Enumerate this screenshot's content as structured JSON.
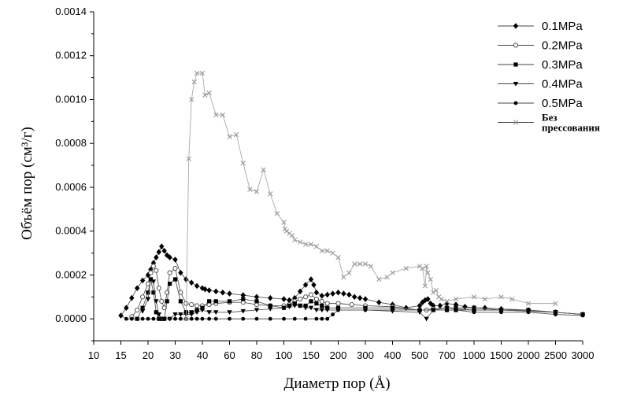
{
  "chart_data": {
    "type": "line",
    "xlabel": "Диаметр пор (Å)",
    "ylabel": "Объём пор (см³/г)",
    "x_ticks": [
      "10",
      "15",
      "20",
      "30",
      "40",
      "60",
      "80",
      "100",
      "150",
      "200",
      "300",
      "400",
      "500",
      "700",
      "1000",
      "1500",
      "2000",
      "2500",
      "3000"
    ],
    "y_ticks": [
      "0.0000",
      "0.0002",
      "0.0004",
      "0.0006",
      "0.0008",
      "0.0010",
      "0.0012",
      "0.0014"
    ],
    "ylim": [
      -0.0001,
      0.0014
    ],
    "x_scale": "categorical-ticks",
    "legend_position": "top-right",
    "series": [
      {
        "name": "0.1MPa",
        "marker": "diamond",
        "color": "#000000",
        "x": [
          15,
          16,
          17,
          18,
          19,
          20,
          21,
          22,
          23,
          24,
          25,
          26,
          27,
          28,
          30,
          32,
          34,
          36,
          38,
          40,
          42,
          45,
          50,
          55,
          60,
          70,
          80,
          90,
          100,
          110,
          120,
          130,
          140,
          150,
          155,
          160,
          170,
          180,
          190,
          200,
          220,
          240,
          260,
          280,
          300,
          350,
          400,
          450,
          500,
          520,
          540,
          560,
          580,
          600,
          650,
          700,
          800,
          900,
          1000,
          1200,
          1500,
          2000,
          2500,
          3000
        ],
        "y": [
          1.5e-05,
          5e-05,
          9.5e-05,
          0.00014,
          0.000175,
          0.0002,
          0.000225,
          0.000255,
          0.00028,
          0.000305,
          0.00033,
          0.00031,
          0.00029,
          0.00028,
          0.00027,
          0.00021,
          0.00018,
          0.000165,
          0.00015,
          0.00014,
          0.000135,
          0.00013,
          0.000125,
          0.00012,
          0.000115,
          0.000108,
          0.0001,
          9.5e-05,
          9e-05,
          8.5e-05,
          9.5e-05,
          0.000125,
          0.000155,
          0.00018,
          0.000155,
          0.00012,
          0.000105,
          0.00011,
          0.000115,
          0.00012,
          0.000115,
          0.00011,
          0.0001,
          9.5e-05,
          9e-05,
          7.5e-05,
          6.5e-05,
          5e-05,
          6e-05,
          7.5e-05,
          8.5e-05,
          9e-05,
          7e-05,
          6e-05,
          6e-05,
          7e-05,
          6.5e-05,
          5.5e-05,
          5e-05,
          5e-05,
          4.5e-05,
          4e-05,
          3e-05,
          2e-05
        ]
      },
      {
        "name": "0.2MPa",
        "marker": "circle-open",
        "color": "#555555",
        "x": [
          17,
          18,
          19,
          20,
          21,
          22,
          23,
          24,
          25,
          26,
          27,
          28,
          30,
          32,
          34,
          36,
          38,
          40,
          45,
          50,
          60,
          70,
          80,
          90,
          100,
          110,
          120,
          130,
          140,
          150,
          160,
          170,
          180,
          200,
          250,
          300,
          400,
          500,
          550,
          600,
          700,
          800,
          1000,
          1500,
          2000,
          2500
        ],
        "y": [
          1e-05,
          4e-05,
          0.0001,
          0.00016,
          0.00021,
          0.00024,
          0.00022,
          0.00014,
          8e-05,
          5e-05,
          0.00012,
          0.00021,
          0.00023,
          0.00012,
          7e-05,
          6.5e-05,
          6e-05,
          6e-05,
          6.5e-05,
          7e-05,
          7.5e-05,
          7.5e-05,
          6.5e-05,
          6e-05,
          6e-05,
          6.5e-05,
          8e-05,
          9e-05,
          0.0001,
          0.00011,
          9e-05,
          8e-05,
          7e-05,
          7e-05,
          6.5e-05,
          6e-05,
          5.5e-05,
          4e-05,
          4e-05,
          4.5e-05,
          5e-05,
          4.5e-05,
          4e-05,
          4e-05,
          3.5e-05,
          3e-05
        ]
      },
      {
        "name": "0.3MPa",
        "marker": "square",
        "color": "#000000",
        "x": [
          18,
          19,
          20,
          21,
          22,
          23,
          24,
          25,
          26,
          27,
          28,
          30,
          32,
          34,
          36,
          38,
          40,
          45,
          50,
          60,
          70,
          80,
          90,
          100,
          110,
          120,
          130,
          140,
          150,
          160,
          170,
          180,
          200,
          300,
          400,
          500,
          600,
          700,
          800,
          1000,
          1500,
          2000,
          2500,
          3000
        ],
        "y": [
          0.0,
          5e-05,
          0.00012,
          0.00018,
          0.00012,
          3e-05,
          0.0,
          0.0,
          0.0,
          8e-05,
          0.00016,
          0.00018,
          8e-05,
          3e-05,
          3e-05,
          4e-05,
          5e-05,
          8e-05,
          8e-05,
          8e-05,
          9e-05,
          8e-05,
          6e-05,
          5e-05,
          6e-05,
          7e-05,
          6e-05,
          6e-05,
          8e-05,
          7e-05,
          6e-05,
          5e-05,
          5e-05,
          5e-05,
          5e-05,
          4e-05,
          4e-05,
          4e-05,
          4e-05,
          4e-05,
          4e-05,
          4e-05,
          3e-05,
          2e-05
        ]
      },
      {
        "name": "0.4MPa",
        "marker": "triangle-down",
        "color": "#000000",
        "x": [
          19,
          20,
          21,
          22,
          23,
          24,
          25,
          26,
          28,
          30,
          32,
          34,
          36,
          38,
          40,
          45,
          50,
          60,
          70,
          80,
          90,
          100,
          110,
          120,
          130,
          140,
          150,
          160,
          170,
          180,
          200,
          300,
          400,
          500,
          550,
          600,
          700,
          800,
          1000,
          1500,
          2000,
          2500,
          3000
        ],
        "y": [
          3.5e-05,
          9e-05,
          0.00018,
          0.00017,
          8e-05,
          2e-05,
          0.0,
          0.0,
          0.0,
          2e-05,
          2e-05,
          2e-05,
          2e-05,
          3e-05,
          4e-05,
          3e-05,
          3e-05,
          3e-05,
          3.5e-05,
          4e-05,
          4.5e-05,
          5e-05,
          5.5e-05,
          6e-05,
          6e-05,
          5e-05,
          5e-05,
          4e-05,
          4e-05,
          4e-05,
          4e-05,
          4e-05,
          3.5e-05,
          3e-05,
          0.0,
          4e-05,
          5e-05,
          5e-05,
          5e-05,
          4e-05,
          3.5e-05,
          3e-05,
          2e-05
        ]
      },
      {
        "name": "0.5MPa",
        "marker": "circle",
        "color": "#000000",
        "x": [
          15,
          16,
          17,
          18,
          19,
          20,
          22,
          24,
          26,
          28,
          30,
          32,
          34,
          36,
          38,
          40,
          45,
          50,
          60,
          70,
          80,
          90,
          100,
          120,
          140,
          160,
          170,
          180,
          190,
          200,
          300,
          400,
          500,
          600,
          700,
          800,
          1000,
          1500,
          2000,
          2500,
          3000
        ],
        "y": [
          1.5e-05,
          0.0,
          0.0,
          0.0,
          0.0,
          0.0,
          0.0,
          0.0,
          0.0,
          0.0,
          0.0,
          0.0,
          0.0,
          0.0,
          0.0,
          0.0,
          0.0,
          0.0,
          0.0,
          0.0,
          0.0,
          0.0,
          0.0,
          0.0,
          0.0,
          0.0,
          0.0,
          0.0,
          2e-05,
          4e-05,
          4e-05,
          4e-05,
          4e-05,
          4e-05,
          4e-05,
          4e-05,
          3e-05,
          3e-05,
          3e-05,
          2e-05,
          1.5e-05
        ]
      },
      {
        "name": "Без прессования",
        "marker": "cross",
        "color": "#999999",
        "x": [
          34,
          35,
          36,
          37,
          38,
          40,
          42,
          45,
          50,
          55,
          60,
          65,
          70,
          75,
          80,
          85,
          90,
          95,
          100,
          102,
          105,
          110,
          115,
          120,
          130,
          140,
          150,
          160,
          170,
          180,
          190,
          200,
          220,
          240,
          260,
          280,
          300,
          320,
          350,
          380,
          400,
          450,
          500,
          520,
          540,
          550,
          560,
          580,
          600,
          620,
          640,
          660,
          700,
          800,
          1000,
          1200,
          1500,
          1700,
          2000,
          2500
        ],
        "y": [
          0.0,
          0.00073,
          0.001,
          0.00108,
          0.00112,
          0.00112,
          0.00102,
          0.00103,
          0.00093,
          0.00093,
          0.00083,
          0.00084,
          0.00071,
          0.00059,
          0.00058,
          0.00068,
          0.00057,
          0.00048,
          0.00044,
          0.00041,
          0.0004,
          0.00039,
          0.00038,
          0.00036,
          0.00035,
          0.00034,
          0.00034,
          0.00033,
          0.00031,
          0.00031,
          0.0003,
          0.00028,
          0.00019,
          0.00021,
          0.00025,
          0.00025,
          0.00025,
          0.00024,
          0.00018,
          0.00019,
          0.00021,
          0.00023,
          0.00024,
          0.00023,
          0.00015,
          0.00024,
          0.00021,
          0.00018,
          0.00012,
          0.00013,
          0.0001,
          9e-05,
          8e-05,
          9e-05,
          0.0001,
          9e-05,
          0.0001,
          9e-05,
          7e-05,
          7e-05
        ]
      }
    ]
  }
}
